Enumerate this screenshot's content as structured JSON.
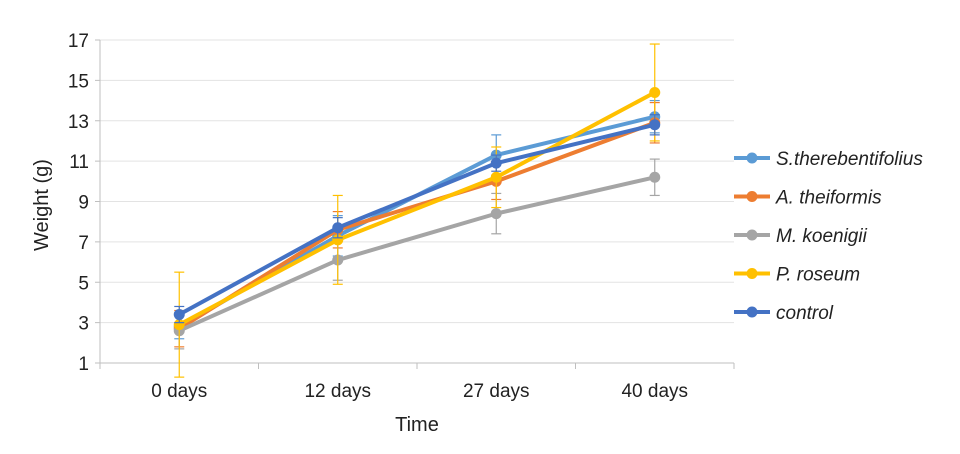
{
  "chart_data": {
    "type": "line",
    "categories": [
      "0 days",
      "12 days",
      "27 days",
      "40 days"
    ],
    "xlabel": "Time",
    "ylabel": "Weight (g)",
    "ylim": [
      1,
      17
    ],
    "yticks": [
      1,
      3,
      5,
      7,
      9,
      11,
      13,
      15,
      17
    ],
    "grid": "horizontal",
    "legend_position": "right",
    "series": [
      {
        "name": "S.therebentifolius",
        "color": "#5B9BD5",
        "values": [
          2.8,
          7.3,
          11.3,
          13.2
        ],
        "error": [
          0.6,
          1.0,
          1.0,
          0.8
        ]
      },
      {
        "name": "A. theiformis",
        "color": "#ED7D31",
        "values": [
          2.7,
          7.6,
          10.0,
          12.9
        ],
        "error": [
          0.9,
          0.9,
          0.9,
          1.0
        ]
      },
      {
        "name": "M. koenigii",
        "color": "#A5A5A5",
        "values": [
          2.6,
          6.1,
          8.4,
          10.2
        ],
        "error": [
          0.9,
          1.0,
          1.0,
          0.9
        ]
      },
      {
        "name": "P. roseum",
        "color": "#FFC000",
        "values": [
          2.9,
          7.1,
          10.2,
          14.4
        ],
        "error": [
          2.6,
          2.2,
          1.5,
          2.4
        ]
      },
      {
        "name": "control",
        "color": "#4472C4",
        "values": [
          3.4,
          7.7,
          10.9,
          12.8
        ],
        "error": [
          0.4,
          0.5,
          0.4,
          0.5
        ]
      }
    ]
  }
}
